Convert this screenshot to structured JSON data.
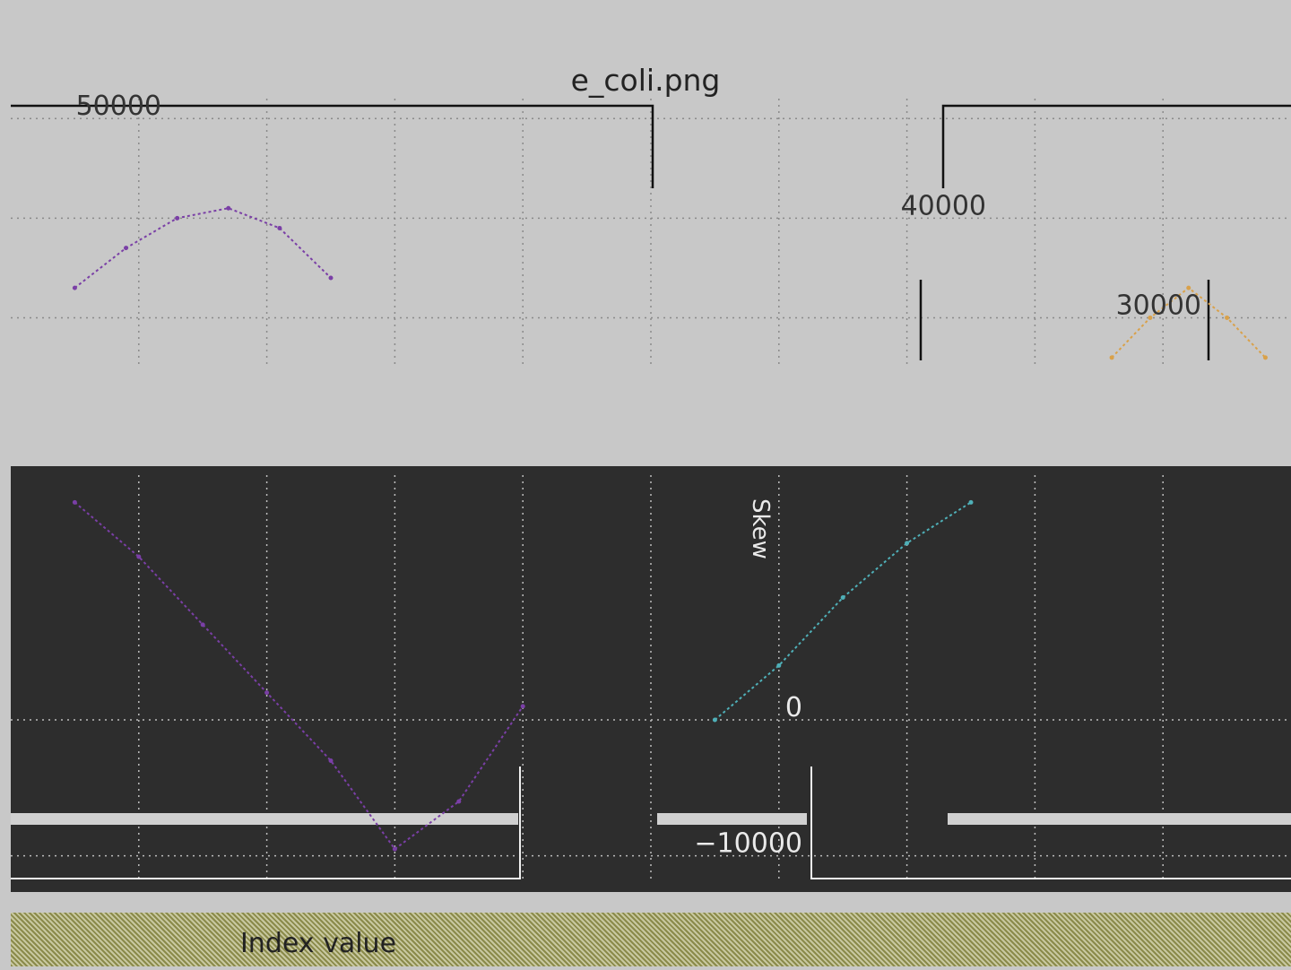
{
  "figure": {
    "title": "e_coli.png"
  },
  "colors": {
    "background": "#c8c8c8",
    "plot_dark": "#2d2d2d",
    "line_primary": "#7a3fa6",
    "line_secondary": "#4fb0b8",
    "line_tertiary": "#c9c24a",
    "line_orange": "#d9a14a",
    "line_red": "#cc2222"
  },
  "chart_data": [
    {
      "type": "line",
      "title": "e_coli.png",
      "xlabel": "",
      "ylabel": "",
      "y_ticks": [
        "50000",
        "40000",
        "30000"
      ],
      "ylim": [
        25000,
        52000
      ],
      "grid": true,
      "series": [
        {
          "x": [
            0.5,
            0.9,
            1.3,
            1.7,
            2.1,
            2.5
          ],
          "values": [
            33000,
            37000,
            40000,
            41000,
            39000,
            34000
          ]
        },
        {
          "x": [
            8.6,
            8.9,
            9.2,
            9.5,
            9.8
          ],
          "values": [
            26000,
            30000,
            33000,
            30000,
            26000
          ]
        }
      ]
    },
    {
      "type": "line",
      "title": "",
      "xlabel": "Index value",
      "ylabel": "Skew",
      "y_ticks": [
        "0",
        "−10000"
      ],
      "ylim": [
        -12000,
        18000
      ],
      "grid": true,
      "series": [
        {
          "x": [
            0.5,
            1.0,
            1.5,
            2.0,
            2.5,
            3.0,
            3.5,
            4.0
          ],
          "values": [
            16000,
            12000,
            7000,
            2000,
            -3000,
            -9500,
            -6000,
            1000
          ]
        },
        {
          "x": [
            5.5,
            6.0,
            6.5,
            7.0,
            7.5
          ],
          "values": [
            0,
            4000,
            9000,
            13000,
            16000
          ]
        }
      ]
    }
  ]
}
